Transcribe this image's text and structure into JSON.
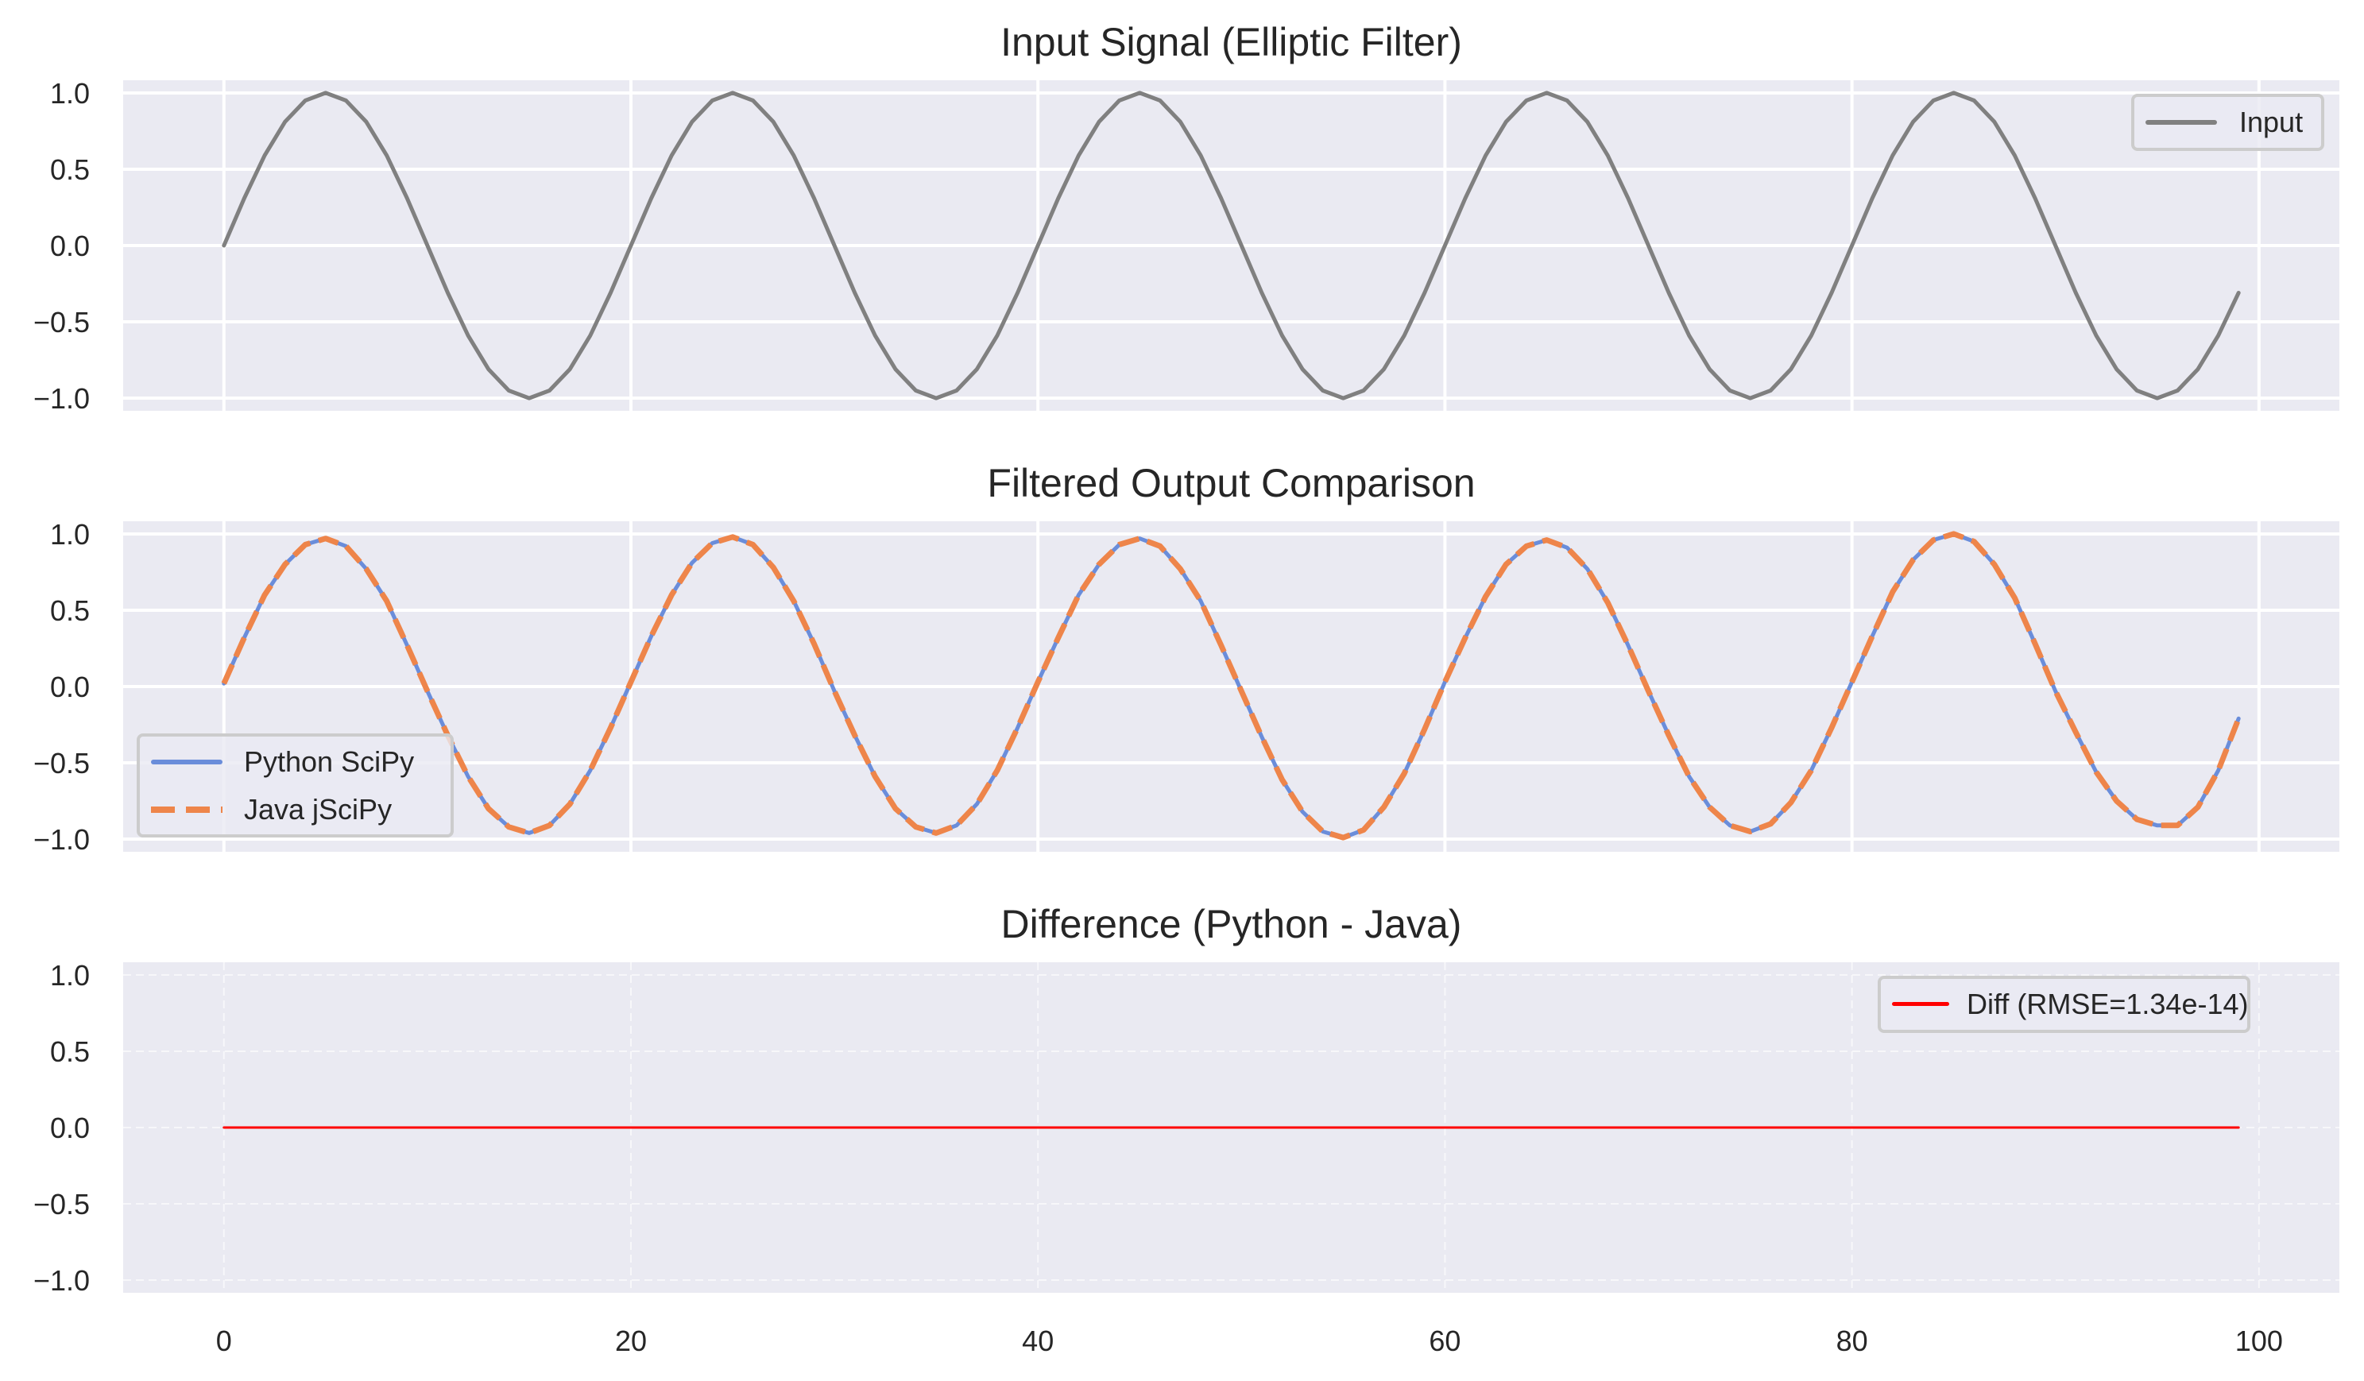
{
  "figure": {
    "background": "#ffffff",
    "axes_background": "#EAEAF2",
    "text_color": "#262626",
    "grid_color": "#ffffff"
  },
  "titles": {
    "panel1": "Input Signal (Elliptic Filter)",
    "panel2": "Filtered Output Comparison",
    "panel3": "Difference (Python - Java)"
  },
  "legends": {
    "panel1": [
      {
        "label": "Input",
        "color": "#808080",
        "style": "solid"
      }
    ],
    "panel2": [
      {
        "label": "Python SciPy",
        "color": "#6A8DDA",
        "style": "solid"
      },
      {
        "label": "Java jSciPy",
        "color": "#EE854A",
        "style": "dashed"
      }
    ],
    "panel3": [
      {
        "label": "Diff (RMSE=1.34e-14)",
        "color": "#FF0000",
        "style": "solid"
      }
    ]
  },
  "chart_data": [
    {
      "type": "line",
      "title": "Input Signal (Elliptic Filter)",
      "xlabel": "",
      "ylabel": "",
      "xlim": [
        -4.95,
        103.95
      ],
      "ylim": [
        -1.083,
        1.083
      ],
      "xticks": [
        0,
        20,
        40,
        60,
        80,
        100
      ],
      "xtick_labels_visible": false,
      "yticks": [
        -1.0,
        -0.5,
        0.0,
        0.5,
        1.0
      ],
      "ytick_labels": [
        "−1.0",
        "−0.5",
        "0.0",
        "0.5",
        "1.0"
      ],
      "grid": "solid",
      "legend_position": "upper right",
      "series": [
        {
          "name": "Input",
          "color": "#808080",
          "linestyle": "solid",
          "x_start": 0,
          "x_step": 1,
          "values": [
            0,
            0.31,
            0.59,
            0.81,
            0.95,
            1.0,
            0.95,
            0.81,
            0.59,
            0.31,
            0,
            -0.31,
            -0.59,
            -0.81,
            -0.95,
            -1.0,
            -0.95,
            -0.81,
            -0.59,
            -0.31,
            0,
            0.31,
            0.59,
            0.81,
            0.95,
            1.0,
            0.95,
            0.81,
            0.59,
            0.31,
            0,
            -0.31,
            -0.59,
            -0.81,
            -0.95,
            -1.0,
            -0.95,
            -0.81,
            -0.59,
            -0.31,
            0,
            0.31,
            0.59,
            0.81,
            0.95,
            1.0,
            0.95,
            0.81,
            0.59,
            0.31,
            0,
            -0.31,
            -0.59,
            -0.81,
            -0.95,
            -1.0,
            -0.95,
            -0.81,
            -0.59,
            -0.31,
            0,
            0.31,
            0.59,
            0.81,
            0.95,
            1.0,
            0.95,
            0.81,
            0.59,
            0.31,
            0,
            -0.31,
            -0.59,
            -0.81,
            -0.95,
            -1.0,
            -0.95,
            -0.81,
            -0.59,
            -0.31,
            0,
            0.31,
            0.59,
            0.81,
            0.95,
            1.0,
            0.95,
            0.81,
            0.59,
            0.31,
            0,
            -0.31,
            -0.59,
            -0.81,
            -0.95,
            -1.0,
            -0.95,
            -0.81,
            -0.59,
            -0.31
          ]
        }
      ]
    },
    {
      "type": "line",
      "title": "Filtered Output Comparison",
      "xlabel": "",
      "ylabel": "",
      "xlim": [
        -4.95,
        103.95
      ],
      "ylim": [
        -1.083,
        1.083
      ],
      "xticks": [
        0,
        20,
        40,
        60,
        80,
        100
      ],
      "xtick_labels_visible": false,
      "yticks": [
        -1.0,
        -0.5,
        0.0,
        0.5,
        1.0
      ],
      "ytick_labels": [
        "−1.0",
        "−0.5",
        "0.0",
        "0.5",
        "1.0"
      ],
      "grid": "solid",
      "legend_position": "lower left",
      "series": [
        {
          "name": "Python SciPy",
          "color": "#6A8DDA",
          "linestyle": "solid",
          "x_start": 0,
          "x_step": 1,
          "values": [
            0.02,
            0.32,
            0.6,
            0.8,
            0.93,
            0.97,
            0.92,
            0.77,
            0.56,
            0.27,
            -0.03,
            -0.32,
            -0.59,
            -0.8,
            -0.92,
            -0.96,
            -0.91,
            -0.77,
            -0.55,
            -0.27,
            0.03,
            0.33,
            0.6,
            0.81,
            0.94,
            0.98,
            0.93,
            0.78,
            0.56,
            0.28,
            -0.03,
            -0.32,
            -0.59,
            -0.8,
            -0.92,
            -0.96,
            -0.91,
            -0.77,
            -0.55,
            -0.27,
            0.03,
            0.32,
            0.6,
            0.8,
            0.93,
            0.97,
            0.92,
            0.77,
            0.56,
            0.27,
            -0.03,
            -0.33,
            -0.61,
            -0.82,
            -0.95,
            -0.99,
            -0.94,
            -0.79,
            -0.57,
            -0.28,
            0.03,
            0.32,
            0.59,
            0.8,
            0.92,
            0.96,
            0.91,
            0.77,
            0.55,
            0.27,
            -0.03,
            -0.32,
            -0.59,
            -0.79,
            -0.91,
            -0.95,
            -0.9,
            -0.76,
            -0.55,
            -0.27,
            0.03,
            0.33,
            0.62,
            0.83,
            0.96,
            1.0,
            0.95,
            0.8,
            0.58,
            0.28,
            -0.03,
            -0.3,
            -0.56,
            -0.75,
            -0.87,
            -0.91,
            -0.91,
            -0.79,
            -0.55,
            -0.21
          ]
        },
        {
          "name": "Java jSciPy",
          "color": "#EE854A",
          "linestyle": "dashed",
          "x_start": 0,
          "x_step": 1,
          "values": [
            0.02,
            0.32,
            0.6,
            0.8,
            0.93,
            0.97,
            0.92,
            0.77,
            0.56,
            0.27,
            -0.03,
            -0.32,
            -0.59,
            -0.8,
            -0.92,
            -0.96,
            -0.91,
            -0.77,
            -0.55,
            -0.27,
            0.03,
            0.33,
            0.6,
            0.81,
            0.94,
            0.98,
            0.93,
            0.78,
            0.56,
            0.28,
            -0.03,
            -0.32,
            -0.59,
            -0.8,
            -0.92,
            -0.96,
            -0.91,
            -0.77,
            -0.55,
            -0.27,
            0.03,
            0.32,
            0.6,
            0.8,
            0.93,
            0.97,
            0.92,
            0.77,
            0.56,
            0.27,
            -0.03,
            -0.33,
            -0.61,
            -0.82,
            -0.95,
            -0.99,
            -0.94,
            -0.79,
            -0.57,
            -0.28,
            0.03,
            0.32,
            0.59,
            0.8,
            0.92,
            0.96,
            0.91,
            0.77,
            0.55,
            0.27,
            -0.03,
            -0.32,
            -0.59,
            -0.79,
            -0.91,
            -0.95,
            -0.9,
            -0.76,
            -0.55,
            -0.27,
            0.03,
            0.33,
            0.62,
            0.83,
            0.96,
            1.0,
            0.95,
            0.8,
            0.58,
            0.28,
            -0.03,
            -0.3,
            -0.56,
            -0.75,
            -0.87,
            -0.91,
            -0.91,
            -0.79,
            -0.55,
            -0.21
          ]
        }
      ]
    },
    {
      "type": "line",
      "title": "Difference (Python - Java)",
      "xlabel": "",
      "ylabel": "",
      "xlim": [
        -4.95,
        103.95
      ],
      "ylim": [
        -1.083,
        1.083
      ],
      "xticks": [
        0,
        20,
        40,
        60,
        80,
        100
      ],
      "xtick_labels": [
        "0",
        "20",
        "40",
        "60",
        "80",
        "100"
      ],
      "xtick_labels_visible": true,
      "yticks": [
        -1.0,
        -0.5,
        0.0,
        0.5,
        1.0
      ],
      "ytick_labels": [
        "−1.0",
        "−0.5",
        "0.0",
        "0.5",
        "1.0"
      ],
      "grid": "dashed",
      "legend_position": "upper right",
      "series": [
        {
          "name": "Diff (RMSE=1.34e-14)",
          "color": "#FF0000",
          "linestyle": "solid",
          "x_start": 0,
          "x_step": 1,
          "constant_value": 0,
          "count": 100
        }
      ]
    }
  ]
}
